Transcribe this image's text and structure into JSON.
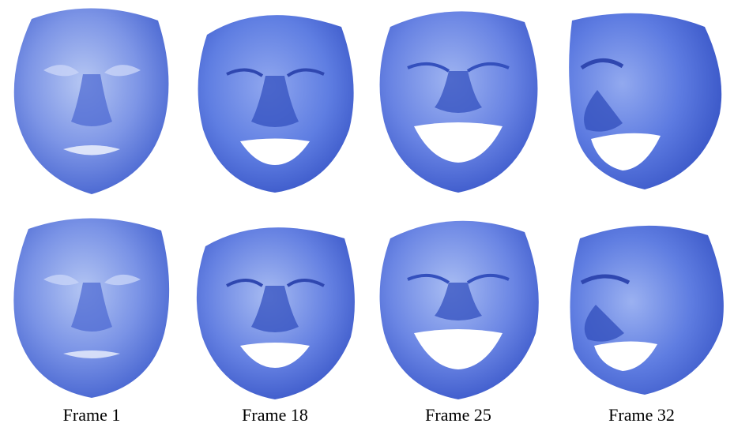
{
  "figure": {
    "captions": [
      "Frame 1",
      "Frame 18",
      "Frame 25",
      "Frame 32"
    ],
    "rows": [
      {
        "row": "top",
        "frames": [
          "Frame 1",
          "Frame 18",
          "Frame 25",
          "Frame 32"
        ]
      },
      {
        "row": "bottom",
        "frames": [
          "Frame 1",
          "Frame 18",
          "Frame 25",
          "Frame 32"
        ]
      }
    ],
    "colors": {
      "face_light": "#a9bdf0",
      "face_mid": "#6a86e3",
      "face_dark": "#3f5ccc",
      "shadow": "#2f47b0",
      "background": "#ffffff"
    }
  }
}
